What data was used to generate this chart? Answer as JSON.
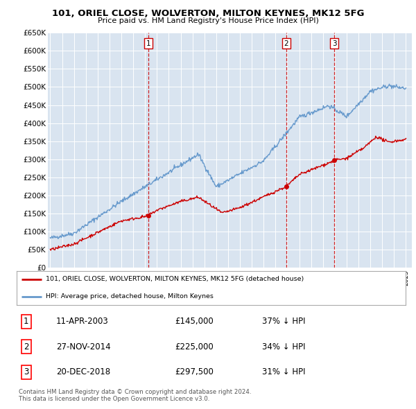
{
  "title": "101, ORIEL CLOSE, WOLVERTON, MILTON KEYNES, MK12 5FG",
  "subtitle": "Price paid vs. HM Land Registry's House Price Index (HPI)",
  "ylim": [
    0,
    650000
  ],
  "yticks": [
    0,
    50000,
    100000,
    150000,
    200000,
    250000,
    300000,
    350000,
    400000,
    450000,
    500000,
    550000,
    600000,
    650000
  ],
  "ytick_labels": [
    "£0",
    "£50K",
    "£100K",
    "£150K",
    "£200K",
    "£250K",
    "£300K",
    "£350K",
    "£400K",
    "£450K",
    "£500K",
    "£550K",
    "£600K",
    "£650K"
  ],
  "plot_bg_color": "#d9e4f0",
  "line_color_red": "#cc0000",
  "line_color_blue": "#6699cc",
  "vline_color": "#cc0000",
  "transaction_dates": [
    2003.28,
    2014.91,
    2018.97
  ],
  "transaction_labels": [
    "1",
    "2",
    "3"
  ],
  "transaction_prices": [
    145000,
    225000,
    297500
  ],
  "legend_label_red": "101, ORIEL CLOSE, WOLVERTON, MILTON KEYNES, MK12 5FG (detached house)",
  "legend_label_blue": "HPI: Average price, detached house, Milton Keynes",
  "table_data": [
    [
      "1",
      "11-APR-2003",
      "£145,000",
      "37% ↓ HPI"
    ],
    [
      "2",
      "27-NOV-2014",
      "£225,000",
      "34% ↓ HPI"
    ],
    [
      "3",
      "20-DEC-2018",
      "£297,500",
      "31% ↓ HPI"
    ]
  ],
  "footer": "Contains HM Land Registry data © Crown copyright and database right 2024.\nThis data is licensed under the Open Government Licence v3.0."
}
